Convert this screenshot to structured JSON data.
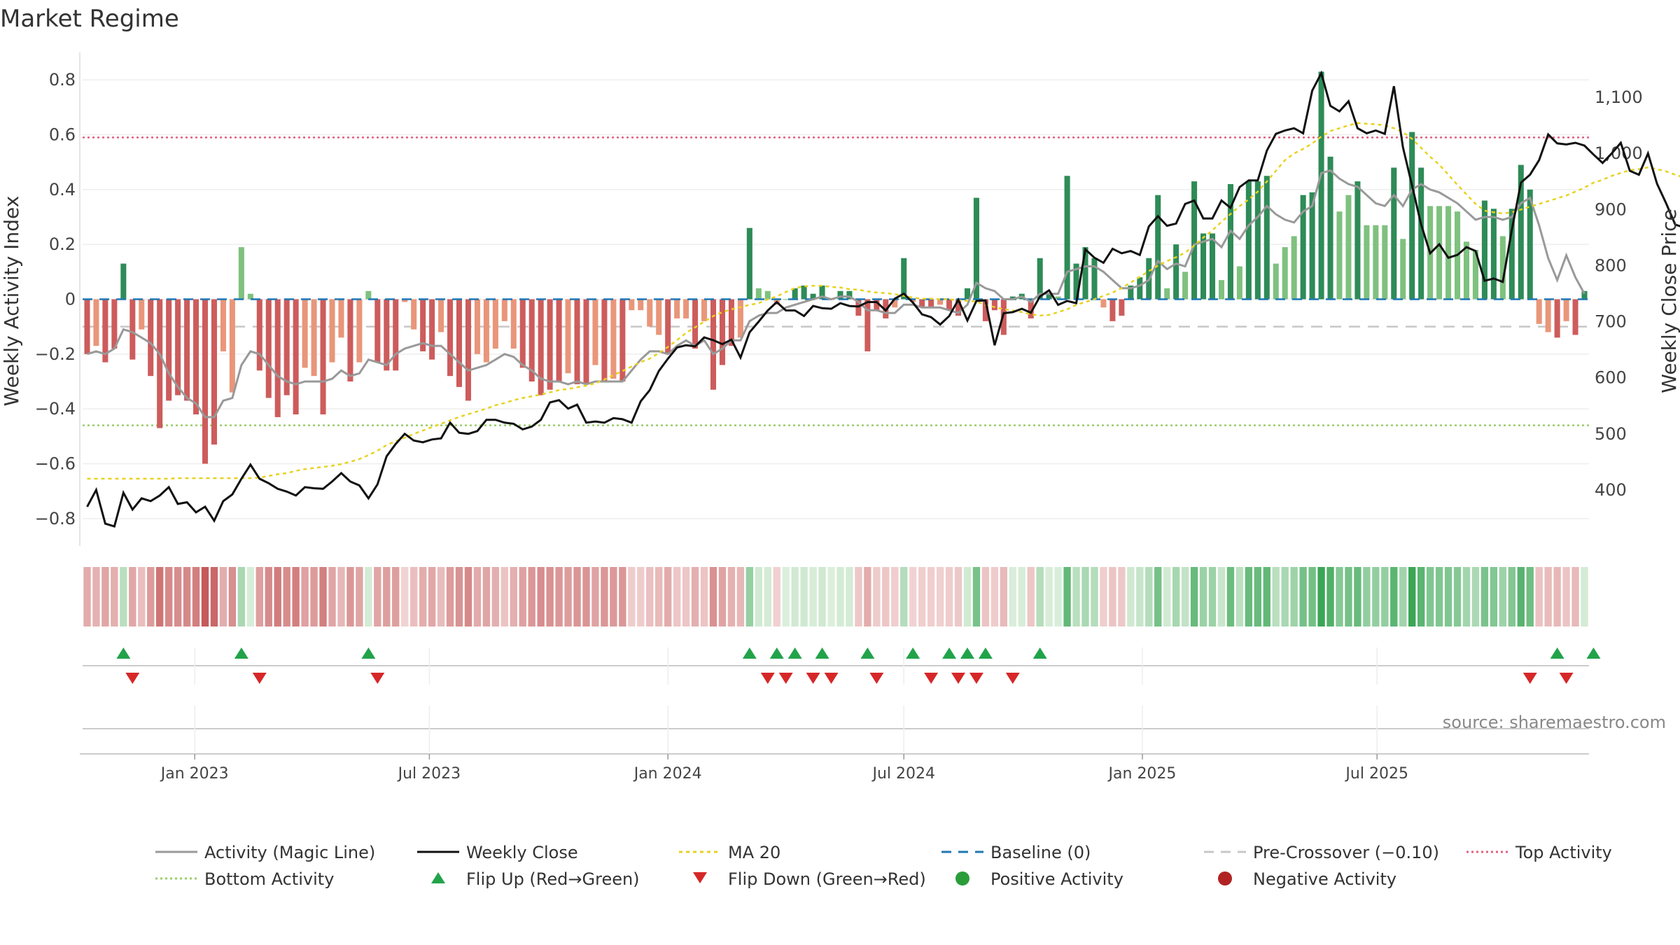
{
  "colors": {
    "pos_strong": "#2e8b57",
    "pos_light": "#7fc17f",
    "neg_strong": "#cd5c5c",
    "neg_light": "#e9967a",
    "magic_line": "#999999",
    "close_line": "#111111",
    "ma_line": "#e8d21e",
    "baseline": "#1f77b4",
    "precross": "#c8c8c8",
    "top_line": "#e0607e",
    "bottom_line": "#9acd6a",
    "flip_up": "#22a34a",
    "flip_down": "#d62728",
    "pos_dot": "#2a9d3a",
    "neg_dot": "#b22222"
  },
  "chart_data": {
    "type": "bar",
    "title": "Market Regime",
    "ylabel": "Weekly Activity Index",
    "y2label": "Weekly Close Price",
    "source": "source: sharemaestro.com",
    "x_start": "2022-10-10",
    "week_step_days": 7,
    "ylim": [
      -0.9,
      0.9
    ],
    "y2lim": [
      300,
      1180
    ],
    "yticks": [
      "0.8",
      "0.6",
      "0.4",
      "0.2",
      "0",
      "−0.2",
      "−0.4",
      "−0.6",
      "−0.8"
    ],
    "y2ticks": [
      "1,100",
      "1,000",
      "900",
      "800",
      "700",
      "600",
      "500",
      "400"
    ],
    "xticks": [
      "Jan 2023",
      "Jul 2023",
      "Jan 2024",
      "Jul 2024",
      "Jan 2025",
      "Jul 2025"
    ],
    "top_activity": 0.59,
    "bottom_activity": -0.46,
    "pre_crossover": -0.1,
    "baseline": 0,
    "activity_values": [
      -0.2,
      -0.17,
      -0.23,
      -0.18,
      0.13,
      -0.22,
      -0.11,
      -0.28,
      -0.47,
      -0.37,
      -0.35,
      -0.37,
      -0.42,
      -0.6,
      -0.53,
      -0.19,
      -0.34,
      0.19,
      0.02,
      -0.26,
      -0.36,
      -0.43,
      -0.35,
      -0.42,
      -0.25,
      -0.28,
      -0.42,
      -0.23,
      -0.14,
      -0.3,
      -0.23,
      0.03,
      -0.23,
      -0.26,
      -0.26,
      -0.01,
      -0.11,
      -0.19,
      -0.22,
      -0.12,
      -0.28,
      -0.32,
      -0.37,
      -0.2,
      -0.23,
      -0.18,
      -0.08,
      -0.18,
      -0.25,
      -0.3,
      -0.35,
      -0.33,
      -0.3,
      -0.27,
      -0.31,
      -0.31,
      -0.24,
      -0.3,
      -0.29,
      -0.3,
      -0.04,
      -0.04,
      -0.1,
      -0.13,
      -0.2,
      -0.07,
      -0.07,
      -0.18,
      -0.08,
      -0.33,
      -0.24,
      -0.17,
      -0.14,
      0.26,
      0.04,
      0.03,
      -0.02,
      0.0,
      0.04,
      0.05,
      0.02,
      0.05,
      0.0,
      0.03,
      0.03,
      -0.06,
      -0.19,
      -0.04,
      -0.07,
      -0.03,
      0.15,
      -0.01,
      -0.03,
      -0.03,
      -0.02,
      -0.04,
      -0.06,
      0.04,
      0.37,
      -0.08,
      -0.04,
      -0.13,
      0.01,
      0.02,
      -0.07,
      0.15,
      0.02,
      0.01,
      0.45,
      0.13,
      0.19,
      0.15,
      -0.03,
      -0.08,
      -0.06,
      0.05,
      0.08,
      0.15,
      0.38,
      0.04,
      0.2,
      0.1,
      0.43,
      0.24,
      0.24,
      0.07,
      0.42,
      0.12,
      0.43,
      0.43,
      0.45,
      0.13,
      0.19,
      0.23,
      0.38,
      0.39,
      0.83,
      0.52,
      0.32,
      0.38,
      0.43,
      0.27,
      0.27,
      0.27,
      0.48,
      0.22,
      0.61,
      0.48,
      0.34,
      0.34,
      0.34,
      0.32,
      0.21,
      0.18,
      0.36,
      0.33,
      0.23,
      0.33,
      0.49,
      0.4,
      -0.09,
      -0.12,
      -0.14,
      -0.08,
      -0.13,
      0.03
    ],
    "magic_line": [
      -0.2,
      -0.19,
      -0.2,
      -0.18,
      -0.11,
      -0.12,
      -0.14,
      -0.16,
      -0.2,
      -0.27,
      -0.32,
      -0.36,
      -0.38,
      -0.43,
      -0.43,
      -0.37,
      -0.36,
      -0.24,
      -0.19,
      -0.2,
      -0.24,
      -0.28,
      -0.3,
      -0.31,
      -0.3,
      -0.3,
      -0.3,
      -0.29,
      -0.26,
      -0.28,
      -0.27,
      -0.22,
      -0.23,
      -0.24,
      -0.2,
      -0.18,
      -0.17,
      -0.16,
      -0.17,
      -0.17,
      -0.2,
      -0.23,
      -0.26,
      -0.25,
      -0.24,
      -0.22,
      -0.2,
      -0.21,
      -0.24,
      -0.26,
      -0.29,
      -0.3,
      -0.3,
      -0.31,
      -0.3,
      -0.31,
      -0.3,
      -0.3,
      -0.3,
      -0.3,
      -0.26,
      -0.22,
      -0.19,
      -0.19,
      -0.2,
      -0.17,
      -0.15,
      -0.17,
      -0.15,
      -0.2,
      -0.18,
      -0.15,
      -0.15,
      -0.08,
      -0.06,
      -0.05,
      -0.05,
      -0.03,
      -0.02,
      -0.01,
      0.0,
      0.01,
      0.0,
      0.01,
      0.01,
      -0.01,
      -0.04,
      -0.04,
      -0.05,
      -0.05,
      -0.02,
      -0.02,
      -0.03,
      -0.03,
      -0.03,
      -0.04,
      -0.05,
      -0.02,
      0.06,
      0.04,
      0.03,
      0.0,
      0.0,
      0.01,
      -0.01,
      0.02,
      0.02,
      0.02,
      0.1,
      0.11,
      0.12,
      0.12,
      0.1,
      0.07,
      0.04,
      0.04,
      0.05,
      0.07,
      0.14,
      0.11,
      0.13,
      0.12,
      0.2,
      0.21,
      0.22,
      0.19,
      0.25,
      0.22,
      0.27,
      0.3,
      0.34,
      0.31,
      0.29,
      0.28,
      0.32,
      0.34,
      0.46,
      0.47,
      0.44,
      0.42,
      0.41,
      0.38,
      0.35,
      0.34,
      0.38,
      0.34,
      0.4,
      0.42,
      0.4,
      0.39,
      0.37,
      0.35,
      0.32,
      0.29,
      0.3,
      0.3,
      0.29,
      0.3,
      0.35,
      0.37,
      0.27,
      0.15,
      0.07,
      0.16,
      0.08,
      0.02
    ],
    "weekly_close": [
      370,
      400,
      340,
      335,
      395,
      365,
      385,
      380,
      390,
      405,
      375,
      378,
      360,
      370,
      345,
      380,
      392,
      420,
      445,
      420,
      412,
      402,
      397,
      390,
      405,
      403,
      402,
      415,
      430,
      415,
      408,
      385,
      410,
      460,
      482,
      500,
      488,
      485,
      490,
      492,
      520,
      502,
      500,
      505,
      525,
      525,
      520,
      518,
      508,
      513,
      525,
      556,
      560,
      545,
      552,
      520,
      522,
      520,
      528,
      526,
      520,
      558,
      578,
      612,
      634,
      654,
      658,
      656,
      672,
      667,
      660,
      668,
      636,
      681,
      700,
      720,
      735,
      720,
      720,
      710,
      728,
      724,
      723,
      733,
      728,
      727,
      735,
      735,
      720,
      741,
      750,
      734,
      713,
      708,
      695,
      710,
      739,
      702,
      737,
      738,
      658,
      715,
      717,
      723,
      716,
      745,
      756,
      730,
      737,
      733,
      829,
      814,
      805,
      830,
      822,
      826,
      819,
      870,
      888,
      871,
      875,
      910,
      916,
      884,
      884,
      916,
      903,
      940,
      952,
      952,
      1005,
      1035,
      1041,
      1045,
      1036,
      1112,
      1143,
      1085,
      1075,
      1093,
      1045,
      1036,
      1041,
      1035,
      1120,
      1011,
      943,
      873,
      822,
      838,
      814,
      819,
      833,
      826,
      773,
      777,
      771,
      864,
      948,
      962,
      988,
      1034,
      1018,
      1016,
      1019,
      1014,
      998,
      983,
      1000,
      1019,
      969,
      962,
      1000,
      946,
      911,
      873,
      868,
      924,
      915,
      913,
      923,
      942
    ],
    "ma20": [
      420,
      420,
      420,
      420,
      420,
      420,
      420,
      420,
      420,
      420,
      421,
      421,
      421,
      421,
      421,
      421,
      421,
      421,
      421,
      422,
      425,
      428,
      430,
      434,
      437,
      439,
      441,
      443,
      446,
      450,
      455,
      462,
      470,
      480,
      487,
      493,
      500,
      506,
      512,
      518,
      524,
      530,
      535,
      540,
      545,
      551,
      555,
      560,
      564,
      567,
      570,
      574,
      578,
      580,
      583,
      586,
      590,
      597,
      605,
      612,
      620,
      628,
      634,
      644,
      655,
      667,
      680,
      690,
      700,
      710,
      717,
      722,
      726,
      730,
      733,
      740,
      745,
      753,
      760,
      763,
      764,
      764,
      762,
      761,
      758,
      757,
      754,
      752,
      751,
      749,
      746,
      743,
      741,
      741,
      740,
      740,
      738,
      737,
      736,
      730,
      726,
      722,
      720,
      717,
      713,
      711,
      712,
      717,
      722,
      730,
      735,
      740,
      746,
      752,
      760,
      770,
      780,
      790,
      800,
      808,
      815,
      823,
      836,
      850,
      863,
      878,
      892,
      906,
      918,
      932,
      950,
      969,
      988,
      1000,
      1008,
      1018,
      1030,
      1040,
      1045,
      1050,
      1054,
      1053,
      1052,
      1050,
      1045,
      1038,
      1026,
      1010,
      994,
      980,
      962,
      944,
      927,
      910,
      898,
      895,
      893,
      895,
      900,
      905,
      910,
      915,
      920,
      925,
      932,
      939,
      948,
      953,
      960,
      965,
      970,
      972,
      975,
      972,
      968,
      962,
      957,
      955,
      952,
      948,
      945
    ]
  },
  "flips": {
    "up_weeks": [
      4,
      17,
      31,
      73,
      76,
      78,
      81,
      86,
      91,
      95,
      97,
      99,
      105,
      162,
      166
    ],
    "down_weeks": [
      5,
      19,
      32,
      75,
      77,
      80,
      82,
      87,
      93,
      96,
      98,
      102,
      159,
      163
    ]
  },
  "legend": {
    "items": [
      {
        "label": "Activity (Magic Line)",
        "kind": "line",
        "color": "#999999",
        "dash": ""
      },
      {
        "label": "Weekly Close",
        "kind": "line",
        "color": "#111111",
        "dash": ""
      },
      {
        "label": "MA 20",
        "kind": "line",
        "color": "#e8d21e",
        "dash": "5 5"
      },
      {
        "label": "Baseline (0)",
        "kind": "line",
        "color": "#1f77b4",
        "dash": "14 10"
      },
      {
        "label": "Pre-Crossover (−0.10)",
        "kind": "line",
        "color": "#c8c8c8",
        "dash": "14 10"
      },
      {
        "label": "Top Activity",
        "kind": "line",
        "color": "#e0607e",
        "dash": "3 4"
      },
      {
        "label": "Bottom Activity",
        "kind": "line",
        "color": "#9acd6a",
        "dash": "3 4"
      },
      {
        "label": "Flip Up (Red→Green)",
        "kind": "tri-up",
        "color": "#22a34a",
        "dash": ""
      },
      {
        "label": "Flip Down (Green→Red)",
        "kind": "tri-down",
        "color": "#d62728",
        "dash": ""
      },
      {
        "label": "Positive Activity",
        "kind": "dot",
        "color": "#2a9d3a",
        "dash": ""
      },
      {
        "label": "Negative Activity",
        "kind": "dot",
        "color": "#b22222",
        "dash": ""
      }
    ]
  }
}
